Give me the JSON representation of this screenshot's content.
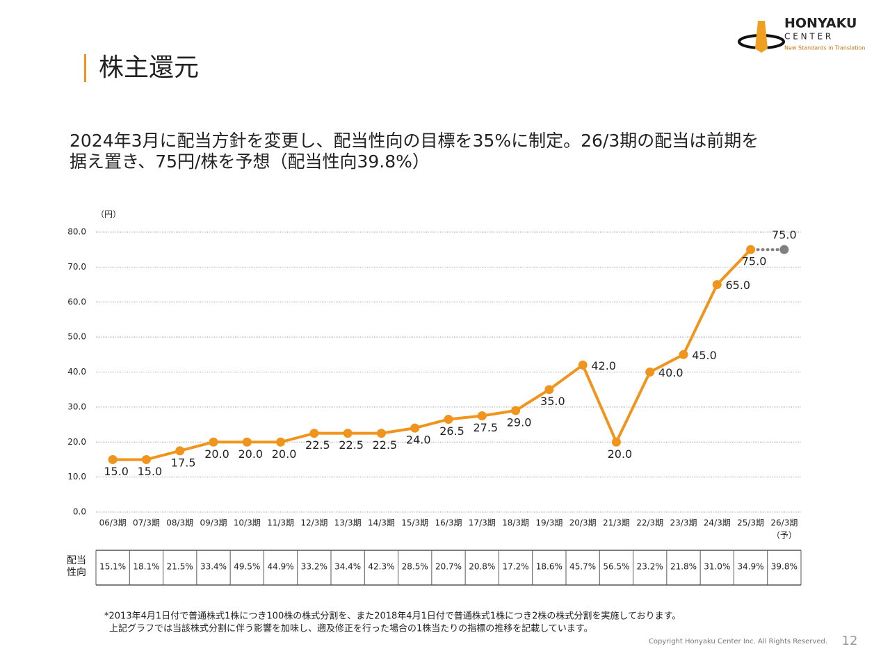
{
  "header": {
    "title": "株主還元",
    "logo": {
      "name": "HONYAKU",
      "sub": "C E N T E R",
      "tagline": "New Standards in Translation"
    }
  },
  "subtitle": [
    "2024年3月に配当方針を変更し、配当性向の目標を35%に制定。26/3期の配当は前期を",
    "据え置き、75円/株を予想（配当性向39.8%）"
  ],
  "chart_data": {
    "type": "line",
    "y_unit": "（円）",
    "categories": [
      "06/3期",
      "07/3期",
      "08/3期",
      "09/3期",
      "10/3期",
      "11/3期",
      "12/3期",
      "13/3期",
      "14/3期",
      "15/3期",
      "16/3期",
      "17/3期",
      "18/3期",
      "19/3期",
      "20/3期",
      "21/3期",
      "22/3期",
      "23/3期",
      "24/3期",
      "25/3期",
      "26/3期"
    ],
    "category_note": "（予）",
    "series": [
      {
        "color": "#f0941e",
        "style": "solid",
        "values": [
          15,
          15,
          17.5,
          20,
          20,
          20,
          22.5,
          22.5,
          22.5,
          24,
          26.5,
          27.5,
          29,
          35,
          42,
          20,
          40,
          45,
          65,
          75,
          null
        ],
        "value_labels": [
          "15.0",
          "15.0",
          "17.5",
          "20.0",
          "20.0",
          "20.0",
          "22.5",
          "22.5",
          "22.5",
          "24.0",
          "26.5",
          "27.5",
          "29.0",
          "35.0",
          "42.0",
          "20.0",
          "40.0",
          "45.0",
          "65.0",
          "75.0",
          null
        ]
      },
      {
        "color": "#808080",
        "style": "dotted",
        "values": [
          null,
          null,
          null,
          null,
          null,
          null,
          null,
          null,
          null,
          null,
          null,
          null,
          null,
          null,
          null,
          null,
          null,
          null,
          null,
          null,
          75
        ],
        "value_labels": [
          null,
          null,
          null,
          null,
          null,
          null,
          null,
          null,
          null,
          null,
          null,
          null,
          null,
          null,
          null,
          null,
          null,
          null,
          null,
          null,
          "75.0"
        ]
      }
    ],
    "ylim": [
      0,
      80
    ],
    "yticks": [
      {
        "value": 0,
        "label": "0.0"
      },
      {
        "value": 10,
        "label": "10.0"
      },
      {
        "value": 20,
        "label": "20.0"
      },
      {
        "value": 30,
        "label": "30.0"
      },
      {
        "value": 40,
        "label": "40.0"
      },
      {
        "value": 50,
        "label": "50.0"
      },
      {
        "value": 60,
        "label": "60.0"
      },
      {
        "value": 70,
        "label": "70.0"
      },
      {
        "value": 80,
        "label": "80.0"
      }
    ],
    "grid": true
  },
  "payout_table": {
    "label": [
      "配当",
      "性向"
    ],
    "values": [
      "15.1%",
      "18.1%",
      "21.5%",
      "33.4%",
      "49.5%",
      "44.9%",
      "33.2%",
      "34.4%",
      "42.3%",
      "28.5%",
      "20.7%",
      "20.8%",
      "17.2%",
      "18.6%",
      "45.7%",
      "56.5%",
      "23.2%",
      "21.8%",
      "31.0%",
      "34.9%",
      "39.8%"
    ]
  },
  "footnotes": [
    "*2013年4月1日付で普通株式1株につき100株の株式分割を、また2018年4月1日付で普通株式1株につき2株の株式分割を実施しております。",
    "上記グラフでは当該株式分割に伴う影響を加味し、遡及修正を行った場合の1株当たりの指標の推移を記載しています。"
  ],
  "footer": {
    "copyright": "Copyright Honyaku Center Inc. All Rights Reserved.",
    "page": "12"
  }
}
